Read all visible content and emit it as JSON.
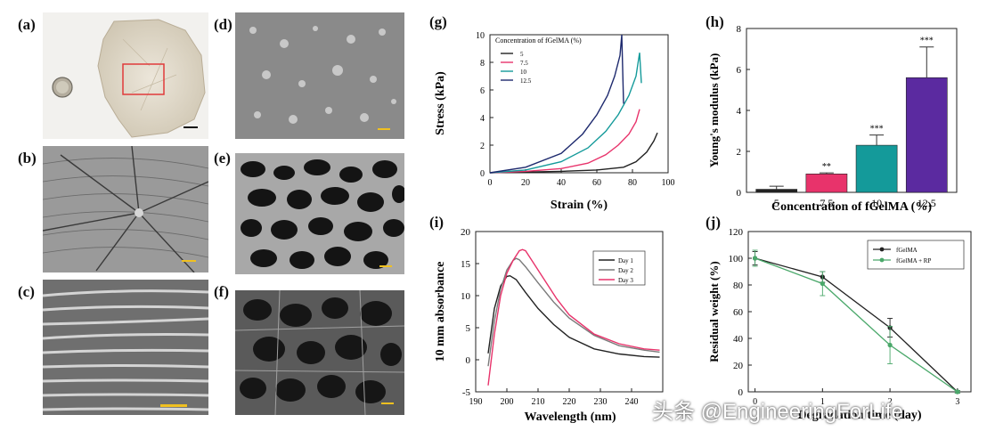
{
  "panels": {
    "a": "(a)",
    "b": "(b)",
    "c": "(c)",
    "d": "(d)",
    "e": "(e)",
    "f": "(f)",
    "g": "(g)",
    "h": "(h)",
    "i": "(i)",
    "j": "(j)"
  },
  "colors": {
    "pink": "#e8336b",
    "teal": "#149a9a",
    "purple": "#5b2aa0",
    "navy": "#1e2a6e",
    "dark": "#222222",
    "gray": "#7a7a7a",
    "scalebar_yellow": "#f0c020"
  },
  "watermark": "头条 @EngineeringForLife",
  "chart_data": [
    {
      "id": "g",
      "type": "line",
      "xlabel": "Strain (%)",
      "ylabel": "Stress (kPa)",
      "xlim": [
        0,
        100
      ],
      "ylim": [
        0,
        10
      ],
      "xticks": [
        "0",
        "20",
        "40",
        "60",
        "80",
        "100"
      ],
      "yticks": [
        "0",
        "2",
        "4",
        "6",
        "8",
        "10"
      ],
      "legend_title": "Concentration of fGelMA (%)",
      "legend_position": "top-left",
      "series": [
        {
          "name": "5",
          "color": "#222222",
          "x": [
            0,
            20,
            40,
            60,
            75,
            82,
            88,
            92,
            94
          ],
          "y": [
            0,
            0.05,
            0.1,
            0.2,
            0.4,
            0.8,
            1.5,
            2.3,
            2.9
          ]
        },
        {
          "name": "7.5",
          "color": "#e8336b",
          "x": [
            0,
            20,
            40,
            55,
            65,
            72,
            78,
            82,
            84
          ],
          "y": [
            0,
            0.1,
            0.3,
            0.7,
            1.3,
            2.0,
            2.8,
            3.7,
            4.6
          ]
        },
        {
          "name": "10",
          "color": "#149a9a",
          "x": [
            0,
            20,
            40,
            55,
            65,
            72,
            78,
            82,
            84,
            85
          ],
          "y": [
            0,
            0.2,
            0.8,
            1.8,
            3.0,
            4.2,
            5.6,
            7.0,
            8.7,
            6.5
          ]
        },
        {
          "name": "12.5",
          "color": "#1e2a6e",
          "x": [
            0,
            20,
            40,
            52,
            60,
            66,
            70,
            73,
            74,
            75
          ],
          "y": [
            0,
            0.4,
            1.4,
            2.8,
            4.2,
            5.6,
            7.0,
            8.5,
            10.0,
            5.0
          ]
        }
      ]
    },
    {
      "id": "h",
      "type": "bar",
      "xlabel": "Concentration of fGelMA (%)",
      "ylabel": "Young's modulus (kPa)",
      "ylim": [
        0,
        8
      ],
      "yticks": [
        "0",
        "2",
        "4",
        "6",
        "8"
      ],
      "categories": [
        "5",
        "7.5",
        "10",
        "12.5"
      ],
      "values": [
        0.15,
        0.9,
        2.3,
        5.6
      ],
      "errors": [
        0.15,
        0.05,
        0.5,
        1.5
      ],
      "significance": [
        "",
        "**",
        "***",
        "***"
      ],
      "colors": [
        "#222222",
        "#e8336b",
        "#149a9a",
        "#5b2aa0"
      ]
    },
    {
      "id": "i",
      "type": "line",
      "xlabel": "Wavelength (nm)",
      "ylabel": "10 mm absorbance",
      "xlim": [
        190,
        250
      ],
      "ylim": [
        -5,
        20
      ],
      "xticks": [
        "190",
        "200",
        "210",
        "220",
        "230",
        "240"
      ],
      "yticks": [
        "-5",
        "0",
        "5",
        "10",
        "15",
        "20"
      ],
      "legend_position": "top-right",
      "series": [
        {
          "name": "Day 1",
          "color": "#222222",
          "x": [
            194,
            196,
            198,
            200,
            201,
            203,
            206,
            210,
            215,
            220,
            228,
            236,
            244,
            249
          ],
          "y": [
            1,
            8,
            11.5,
            13,
            13.1,
            12.5,
            10.5,
            8,
            5.5,
            3.5,
            1.7,
            0.9,
            0.5,
            0.4
          ]
        },
        {
          "name": "Day 2",
          "color": "#7a7a7a",
          "x": [
            194,
            196,
            198,
            200,
            202,
            203,
            204,
            206,
            210,
            215,
            220,
            228,
            236,
            244,
            249
          ],
          "y": [
            -1,
            6,
            11,
            14,
            15.5,
            15.8,
            15.6,
            14.5,
            12,
            9,
            6.5,
            3.8,
            2.2,
            1.5,
            1.2
          ]
        },
        {
          "name": "Day 3",
          "color": "#e8336b",
          "x": [
            194,
            196,
            198,
            200,
            202,
            204,
            205,
            206,
            208,
            212,
            216,
            220,
            228,
            236,
            244,
            249
          ],
          "y": [
            -4,
            4,
            10,
            13.5,
            15.5,
            17,
            17.2,
            17,
            15.5,
            12.5,
            9.5,
            7,
            4,
            2.5,
            1.7,
            1.5
          ]
        }
      ]
    },
    {
      "id": "j",
      "type": "line",
      "xlabel": "Degradation time (day)",
      "ylabel": "Residual weight (%)",
      "ylim": [
        0,
        120
      ],
      "xticks": [
        "0",
        "1",
        "2",
        "3"
      ],
      "yticks": [
        "0",
        "20",
        "40",
        "60",
        "80",
        "100",
        "120"
      ],
      "legend_position": "top-right",
      "series": [
        {
          "name": "fGelMA",
          "color": "#222222",
          "x": [
            0,
            1,
            2,
            3
          ],
          "y": [
            100,
            86,
            48,
            0
          ],
          "errors": [
            5,
            4,
            7,
            1
          ]
        },
        {
          "name": "fGelMA + RP",
          "color": "#4aa86a",
          "x": [
            0,
            1,
            2,
            3
          ],
          "y": [
            100,
            81,
            35,
            0
          ],
          "errors": [
            6,
            9,
            14,
            1
          ]
        }
      ]
    }
  ]
}
